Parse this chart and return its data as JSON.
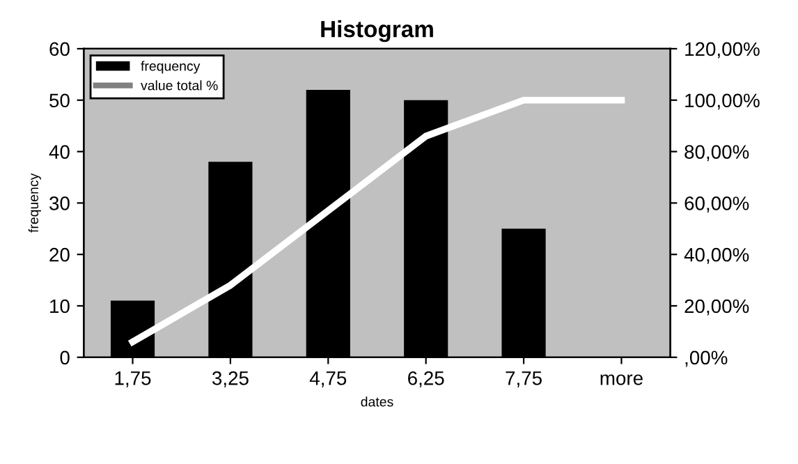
{
  "chart_data": {
    "type": "bar",
    "title": "Histogram",
    "xlabel": "dates",
    "ylabel": "frequency",
    "categories": [
      "1,75",
      "3,25",
      "4,75",
      "6,25",
      "7,75",
      "more"
    ],
    "series": [
      {
        "name": "frequency",
        "color": "#000000",
        "values": [
          11,
          38,
          52,
          50,
          25,
          0
        ]
      },
      {
        "name": "value total %",
        "color": "#ffffff",
        "type": "line",
        "axis": "y2",
        "values": [
          6,
          28,
          57,
          86,
          100,
          100
        ]
      }
    ],
    "ylim": [
      0,
      60
    ],
    "yticks": [
      0,
      10,
      20,
      30,
      40,
      50,
      60
    ],
    "y2lim": [
      0,
      120
    ],
    "y2ticks": [
      {
        "value": 0,
        "label": ",00%"
      },
      {
        "value": 20,
        "label": "20,00%"
      },
      {
        "value": 40,
        "label": "40,00%"
      },
      {
        "value": 60,
        "label": "60,00%"
      },
      {
        "value": 80,
        "label": "80,00%"
      },
      {
        "value": 100,
        "label": "100,00%"
      },
      {
        "value": 120,
        "label": "120,00%"
      }
    ],
    "legend": "top left",
    "grid": false
  }
}
